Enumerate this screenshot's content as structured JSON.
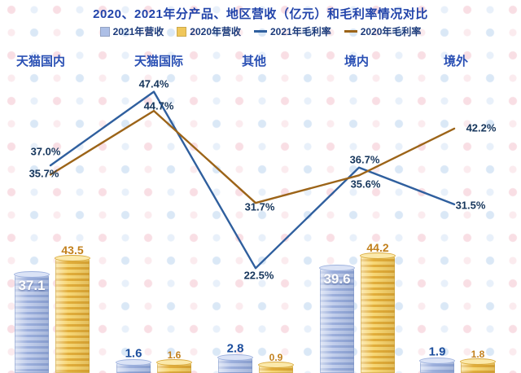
{
  "title": "2020、2021年分产品、地区营收（亿元）和毛利率情况对比",
  "legend": [
    {
      "label": "2021年营收",
      "type": "bar",
      "color": "#adbfe6"
    },
    {
      "label": "2020年营收",
      "type": "bar",
      "color": "#f0c75a"
    },
    {
      "label": "2021年毛利率",
      "type": "line",
      "color": "#2f5f9e"
    },
    {
      "label": "2020年毛利率",
      "type": "line",
      "color": "#9c6418"
    }
  ],
  "chart_data": {
    "type": "combo-bar-line",
    "unit_bar": "亿元",
    "unit_line": "%",
    "legend_position": "top",
    "grid": false,
    "axes_visible": false,
    "categories": [
      "天猫国内",
      "天猫国际",
      "其他",
      "境内",
      "境外"
    ],
    "series": [
      {
        "name": "2021年营收",
        "kind": "bar",
        "values": [
          37.1,
          1.6,
          2.8,
          39.6,
          1.9
        ],
        "labels": [
          "37.1",
          "1.6",
          "2.8",
          "39.6",
          "1.9"
        ]
      },
      {
        "name": "2020年营收",
        "kind": "bar",
        "values": [
          43.5,
          1.6,
          0.9,
          44.2,
          1.8
        ],
        "labels": [
          "43.5",
          "1.6",
          "0.9",
          "44.2",
          "1.8"
        ]
      },
      {
        "name": "2021年毛利率",
        "kind": "line",
        "values": [
          37.0,
          47.4,
          22.5,
          36.7,
          31.5
        ],
        "labels": [
          "37.0%",
          "47.4%",
          "22.5%",
          "36.7%",
          "31.5%"
        ]
      },
      {
        "name": "2020年毛利率",
        "kind": "line",
        "values": [
          35.7,
          44.7,
          31.7,
          35.6,
          42.2
        ],
        "labels": [
          "35.7%",
          "44.7%",
          "31.7%",
          "35.6%",
          "42.2%"
        ]
      }
    ]
  }
}
